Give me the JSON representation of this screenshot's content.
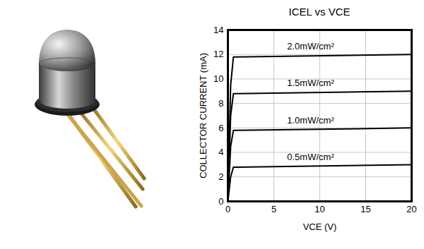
{
  "chart_data": {
    "type": "line",
    "title": "ICEL vs VCE",
    "x_label": "VCE (V)",
    "y_label": "COLLECTOR CURRENT (mA)",
    "x": [
      0,
      0.3,
      0.6,
      1,
      20
    ],
    "series": [
      {
        "name": "0.5mW/cm²",
        "color": "#000000",
        "values": [
          0,
          2.0,
          2.8,
          2.8,
          3.0
        ]
      },
      {
        "name": "1.0mW/cm²",
        "color": "#000000",
        "values": [
          0,
          4.5,
          5.8,
          5.8,
          6.0
        ]
      },
      {
        "name": "1.5mW/cm²",
        "color": "#000000",
        "values": [
          0,
          7.0,
          8.8,
          8.8,
          9.0
        ]
      },
      {
        "name": "2.0mW/cm²",
        "color": "#000000",
        "values": [
          0,
          9.5,
          11.8,
          11.8,
          12.0
        ]
      }
    ],
    "xlim": [
      0,
      20
    ],
    "ylim": [
      0,
      14
    ],
    "xticks": [
      0,
      5,
      10,
      15,
      20
    ],
    "yticks": [
      0,
      2,
      4,
      6,
      8,
      10,
      12,
      14
    ],
    "grid": true
  }
}
